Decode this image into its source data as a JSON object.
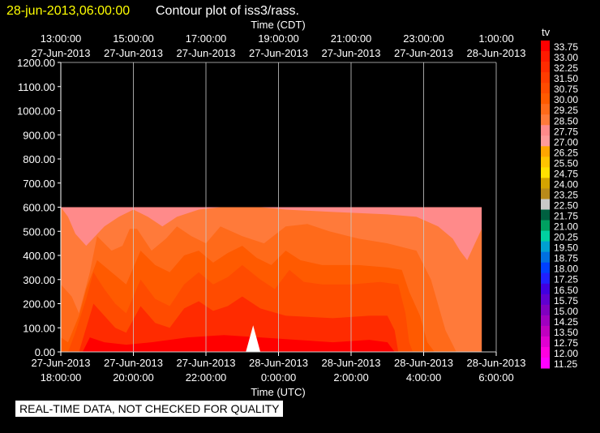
{
  "chart_data": {
    "type": "heatmap",
    "timestamp": "28-jun-2013,06:00:00",
    "title": "Contour plot of iss3/rass.",
    "top_axis_label": "Time (CDT)",
    "bottom_axis_label": "Time (UTC)",
    "top_ticks": [
      {
        "time": "13:00:00",
        "date": "27-Jun-2013"
      },
      {
        "time": "15:00:00",
        "date": "27-Jun-2013"
      },
      {
        "time": "17:00:00",
        "date": "27-Jun-2013"
      },
      {
        "time": "19:00:00",
        "date": "27-Jun-2013"
      },
      {
        "time": "21:00:00",
        "date": "27-Jun-2013"
      },
      {
        "time": "23:00:00",
        "date": "27-Jun-2013"
      },
      {
        "time": "1:00:00",
        "date": "28-Jun-2013"
      }
    ],
    "bottom_ticks": [
      {
        "date": "27-Jun-2013",
        "time": "18:00:00"
      },
      {
        "date": "27-Jun-2013",
        "time": "20:00:00"
      },
      {
        "date": "27-Jun-2013",
        "time": "22:00:00"
      },
      {
        "date": "28-Jun-2013",
        "time": "0:00:00"
      },
      {
        "date": "28-Jun-2013",
        "time": "2:00:00"
      },
      {
        "date": "28-Jun-2013",
        "time": "4:00:00"
      },
      {
        "date": "28-Jun-2013",
        "time": "6:00:00"
      }
    ],
    "x_range_utc_hours": [
      18,
      30
    ],
    "y_ticks": [
      "0.00",
      "100.00",
      "200.00",
      "300.00",
      "400.00",
      "500.00",
      "600.00",
      "700.00",
      "800.00",
      "900.00",
      "1000.00",
      "1100.00",
      "1200.00"
    ],
    "ylim": [
      0,
      1200
    ],
    "data_top": 600,
    "grid": true,
    "colorbar": {
      "label": "tv",
      "levels": [
        "33.75",
        "33.00",
        "32.25",
        "31.50",
        "30.75",
        "30.00",
        "29.25",
        "28.50",
        "27.75",
        "27.00",
        "26.25",
        "25.50",
        "24.75",
        "24.00",
        "23.25",
        "22.50",
        "21.75",
        "21.00",
        "20.25",
        "19.50",
        "18.75",
        "18.00",
        "17.25",
        "16.50",
        "15.75",
        "15.00",
        "14.25",
        "13.50",
        "12.75",
        "12.00",
        "11.25"
      ],
      "colors": [
        "#ff0000",
        "#ff1a00",
        "#ff2b00",
        "#ff3c00",
        "#ff4b00",
        "#ff5a00",
        "#ff6a1a",
        "#ff7a3a",
        "#ff8a8a",
        "#ff9a9a",
        "#ffa500",
        "#ffc400",
        "#ffe000",
        "#d4a300",
        "#b88a1a",
        "#c8c8c8",
        "#006040",
        "#00a060",
        "#00d0a0",
        "#00a0d0",
        "#0070e0",
        "#0040ff",
        "#2020ff",
        "#4000e0",
        "#6000d0",
        "#8000c0",
        "#a000c0",
        "#c000c0",
        "#e000d0",
        "#ff00e0",
        "#ff00ff"
      ]
    },
    "contour_series": [
      {
        "name": "29.25",
        "color": "#ff7a3a",
        "points": [
          [
            18.0,
            600
          ],
          [
            18.2,
            560
          ],
          [
            18.4,
            490
          ],
          [
            18.7,
            440
          ],
          [
            19.2,
            520
          ],
          [
            19.6,
            560
          ],
          [
            20.0,
            590
          ],
          [
            20.4,
            560
          ],
          [
            20.8,
            520
          ],
          [
            21.2,
            560
          ],
          [
            21.8,
            590
          ],
          [
            22.4,
            600
          ],
          [
            23.5,
            600
          ],
          [
            24.2,
            590
          ],
          [
            25.5,
            580
          ],
          [
            27.0,
            570
          ],
          [
            27.8,
            560
          ],
          [
            28.4,
            520
          ],
          [
            28.8,
            470
          ],
          [
            29.0,
            420
          ],
          [
            29.2,
            380
          ],
          [
            29.6,
            510
          ],
          [
            29.6,
            0
          ],
          [
            18.0,
            0
          ]
        ]
      },
      {
        "name": "30.00",
        "color": "#ff6a1a",
        "points": [
          [
            18.0,
            280
          ],
          [
            18.3,
            230
          ],
          [
            18.5,
            160
          ],
          [
            18.8,
            330
          ],
          [
            19.0,
            480
          ],
          [
            19.4,
            420
          ],
          [
            19.7,
            440
          ],
          [
            19.9,
            510
          ],
          [
            20.1,
            510
          ],
          [
            20.5,
            420
          ],
          [
            20.9,
            470
          ],
          [
            21.2,
            520
          ],
          [
            21.6,
            480
          ],
          [
            22.0,
            450
          ],
          [
            22.4,
            520
          ],
          [
            23.0,
            480
          ],
          [
            23.6,
            450
          ],
          [
            24.2,
            520
          ],
          [
            24.8,
            530
          ],
          [
            25.4,
            500
          ],
          [
            26.2,
            470
          ],
          [
            27.0,
            450
          ],
          [
            27.8,
            420
          ],
          [
            28.2,
            300
          ],
          [
            28.6,
            90
          ],
          [
            28.9,
            0
          ],
          [
            18.0,
            0
          ]
        ]
      },
      {
        "name": "30.75",
        "color": "#ff5a00",
        "points": [
          [
            18.0,
            60
          ],
          [
            18.2,
            40
          ],
          [
            18.5,
            150
          ],
          [
            18.7,
            260
          ],
          [
            19.0,
            380
          ],
          [
            19.4,
            330
          ],
          [
            19.8,
            280
          ],
          [
            20.2,
            420
          ],
          [
            20.6,
            360
          ],
          [
            21.0,
            330
          ],
          [
            21.4,
            400
          ],
          [
            21.8,
            420
          ],
          [
            22.2,
            370
          ],
          [
            22.6,
            410
          ],
          [
            23.0,
            440
          ],
          [
            23.4,
            390
          ],
          [
            23.8,
            360
          ],
          [
            24.2,
            420
          ],
          [
            24.6,
            380
          ],
          [
            25.2,
            360
          ],
          [
            26.2,
            360
          ],
          [
            27.0,
            350
          ],
          [
            27.4,
            340
          ],
          [
            27.6,
            250
          ],
          [
            27.9,
            150
          ],
          [
            28.1,
            40
          ],
          [
            28.3,
            0
          ],
          [
            18.0,
            0
          ]
        ]
      },
      {
        "name": "31.50",
        "color": "#ff4b00",
        "points": [
          [
            18.2,
            0
          ],
          [
            18.4,
            80
          ],
          [
            18.7,
            220
          ],
          [
            18.9,
            330
          ],
          [
            19.2,
            260
          ],
          [
            19.5,
            200
          ],
          [
            19.8,
            160
          ],
          [
            20.2,
            300
          ],
          [
            20.6,
            220
          ],
          [
            21.0,
            190
          ],
          [
            21.4,
            280
          ],
          [
            21.8,
            330
          ],
          [
            22.2,
            280
          ],
          [
            22.6,
            310
          ],
          [
            23.0,
            360
          ],
          [
            23.5,
            300
          ],
          [
            23.9,
            260
          ],
          [
            24.3,
            340
          ],
          [
            24.7,
            290
          ],
          [
            25.2,
            280
          ],
          [
            26.0,
            280
          ],
          [
            26.8,
            290
          ],
          [
            27.3,
            280
          ],
          [
            27.5,
            160
          ],
          [
            27.6,
            40
          ],
          [
            27.7,
            0
          ]
        ]
      },
      {
        "name": "32.25",
        "color": "#ff2b00",
        "points": [
          [
            18.5,
            0
          ],
          [
            18.7,
            100
          ],
          [
            18.9,
            200
          ],
          [
            19.2,
            150
          ],
          [
            19.5,
            100
          ],
          [
            19.8,
            80
          ],
          [
            20.2,
            190
          ],
          [
            20.6,
            120
          ],
          [
            21.0,
            100
          ],
          [
            21.4,
            180
          ],
          [
            21.8,
            210
          ],
          [
            22.2,
            170
          ],
          [
            22.6,
            190
          ],
          [
            23.0,
            230
          ],
          [
            23.5,
            180
          ],
          [
            24.2,
            150
          ],
          [
            25.5,
            140
          ],
          [
            26.5,
            150
          ],
          [
            27.0,
            150
          ],
          [
            27.2,
            90
          ],
          [
            27.3,
            0
          ]
        ]
      },
      {
        "name": "33.00",
        "color": "#ff0000",
        "points": [
          [
            18.6,
            0
          ],
          [
            18.8,
            60
          ],
          [
            19.2,
            40
          ],
          [
            19.8,
            30
          ],
          [
            20.5,
            40
          ],
          [
            21.5,
            60
          ],
          [
            22.5,
            70
          ],
          [
            23.5,
            60
          ],
          [
            24.5,
            50
          ],
          [
            25.5,
            40
          ],
          [
            26.5,
            50
          ],
          [
            27.0,
            40
          ],
          [
            27.2,
            0
          ]
        ]
      },
      {
        "name": "33.75",
        "color": "#ff0000",
        "points": [
          [
            20.3,
            0
          ],
          [
            26.9,
            0
          ],
          [
            26.9,
            20
          ],
          [
            20.3,
            20
          ]
        ]
      }
    ],
    "missing_region": {
      "points": [
        [
          23.1,
          0
        ],
        [
          23.3,
          110
        ],
        [
          23.5,
          0
        ]
      ]
    },
    "footer_note": "REAL-TIME DATA, NOT CHECKED FOR QUALITY"
  }
}
